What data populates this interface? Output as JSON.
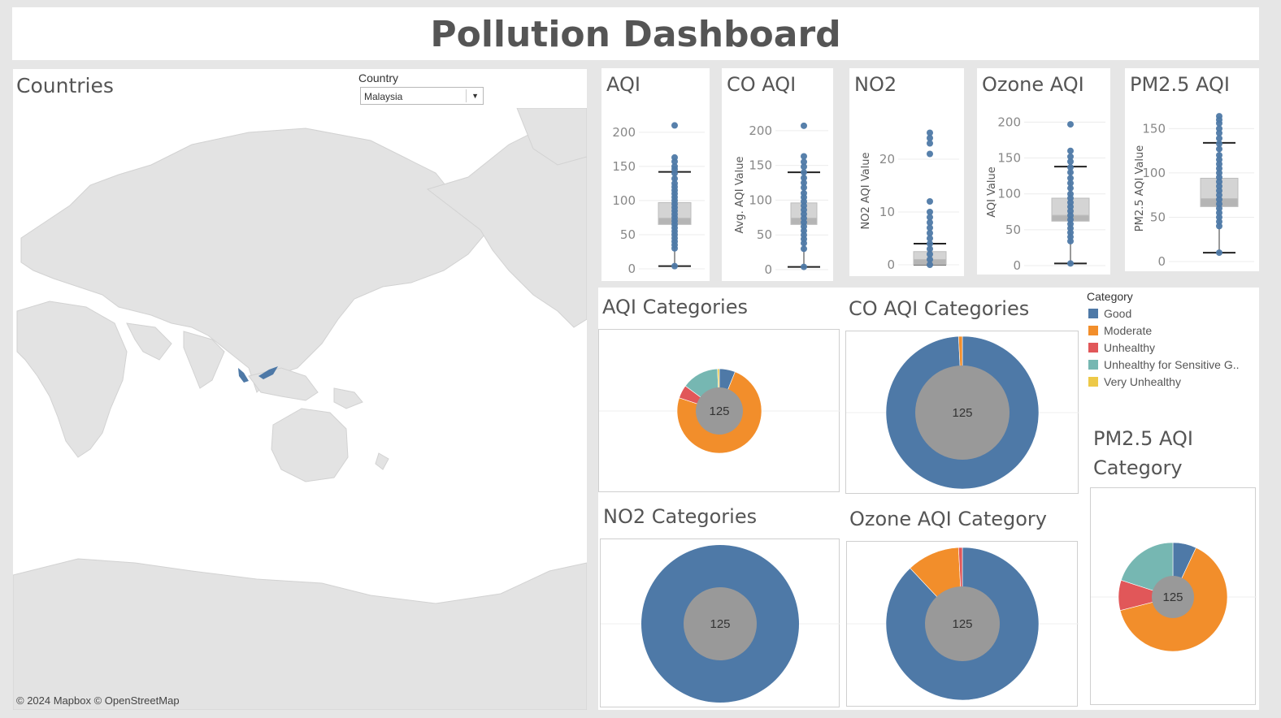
{
  "header": {
    "title": "Pollution Dashboard"
  },
  "map": {
    "title": "Countries",
    "filter": {
      "label": "Country",
      "value": "Malaysia"
    },
    "credit": "© 2024 Mapbox © OpenStreetMap",
    "highlight_color": "#4e79a7"
  },
  "colors": {
    "Good": "#4e79a7",
    "Moderate": "#f28e2b",
    "Unhealthy": "#e15759",
    "Unhealthy for Sensitive G..": "#76b7b2",
    "Very Unhealthy": "#edc948",
    "center": "#999999"
  },
  "legend": {
    "title": "Category",
    "items": [
      "Good",
      "Moderate",
      "Unhealthy",
      "Unhealthy for Sensitive G..",
      "Very Unhealthy"
    ]
  },
  "chart_data": [
    {
      "type": "box",
      "title": "AQI",
      "ylabel": "",
      "ylim": [
        0,
        220
      ],
      "ticks": [
        0,
        50,
        100,
        150,
        200
      ],
      "box": {
        "min": 4,
        "q1": 65,
        "median": 74,
        "q3": 97,
        "max": 142
      },
      "outliers": [
        210,
        163,
        157,
        150,
        146,
        140,
        132,
        125,
        120,
        115,
        110,
        105,
        100,
        95,
        90,
        85,
        80,
        75,
        70,
        65,
        60,
        55,
        50,
        45,
        40,
        35,
        30,
        4
      ]
    },
    {
      "type": "box",
      "title": "CO AQI",
      "ylabel": "Avg. AQI Value",
      "ylim": [
        0,
        215
      ],
      "ticks": [
        0,
        50,
        100,
        150,
        200
      ],
      "box": {
        "min": 4,
        "q1": 65,
        "median": 74,
        "q3": 96,
        "max": 140
      },
      "outliers": [
        207,
        163,
        155,
        148,
        140,
        132,
        125,
        118,
        110,
        104,
        98,
        92,
        86,
        80,
        74,
        68,
        62,
        56,
        50,
        44,
        38,
        30,
        4
      ]
    },
    {
      "type": "box",
      "title": "NO2",
      "ylabel": "NO2 AQI Value",
      "ylim": [
        0,
        28
      ],
      "ticks": [
        0,
        10,
        20
      ],
      "box": {
        "min": 0,
        "q1": 0,
        "median": 1,
        "q3": 2.5,
        "max": 4
      },
      "outliers": [
        25,
        24,
        23,
        21,
        12,
        10,
        9,
        8,
        7,
        6,
        5,
        4,
        3,
        2,
        1,
        0
      ]
    },
    {
      "type": "box",
      "title": "Ozone AQI",
      "ylabel": "AQI Value",
      "ylim": [
        0,
        205
      ],
      "ticks": [
        0,
        50,
        100,
        150,
        200
      ],
      "box": {
        "min": 3,
        "q1": 62,
        "median": 70,
        "q3": 94,
        "max": 138
      },
      "outliers": [
        197,
        160,
        152,
        145,
        137,
        130,
        122,
        115,
        108,
        100,
        94,
        88,
        82,
        76,
        70,
        64,
        58,
        52,
        46,
        40,
        34,
        3
      ]
    },
    {
      "type": "box",
      "title": "PM2.5 AQI",
      "ylabel": "PM2.5 AQI Value",
      "ylim": [
        0,
        165
      ],
      "ticks": [
        0,
        50,
        100,
        150
      ],
      "box": {
        "min": 10,
        "q1": 62,
        "median": 71,
        "q3": 94,
        "max": 134
      },
      "outliers": [
        164,
        160,
        156,
        150,
        145,
        139,
        133,
        127,
        120,
        115,
        110,
        105,
        100,
        95,
        90,
        85,
        80,
        75,
        70,
        65,
        60,
        55,
        50,
        45,
        40,
        10
      ]
    },
    {
      "type": "pie",
      "title": "AQI Categories",
      "center_label": "125",
      "slices": [
        {
          "category": "Good",
          "value": 6
        },
        {
          "category": "Moderate",
          "value": 73
        },
        {
          "category": "Unhealthy",
          "value": 5
        },
        {
          "category": "Unhealthy for Sensitive G..",
          "value": 14
        },
        {
          "category": "Very Unhealthy",
          "value": 0.7
        }
      ]
    },
    {
      "type": "pie",
      "title": "CO AQI Categories",
      "center_label": "125",
      "slices": [
        {
          "category": "Good",
          "value": 124
        },
        {
          "category": "Moderate",
          "value": 1
        }
      ]
    },
    {
      "type": "pie",
      "title": "NO2 Categories",
      "center_label": "125",
      "slices": [
        {
          "category": "Good",
          "value": 125
        }
      ]
    },
    {
      "type": "pie",
      "title": "Ozone AQI Category",
      "center_label": "125",
      "slices": [
        {
          "category": "Good",
          "value": 110
        },
        {
          "category": "Moderate",
          "value": 14
        },
        {
          "category": "Unhealthy",
          "value": 1
        }
      ]
    },
    {
      "type": "pie",
      "title": "PM2.5 AQI Category",
      "center_label": "125",
      "slices": [
        {
          "category": "Good",
          "value": 7
        },
        {
          "category": "Moderate",
          "value": 64
        },
        {
          "category": "Unhealthy",
          "value": 9
        },
        {
          "category": "Unhealthy for Sensitive G..",
          "value": 20
        }
      ]
    }
  ]
}
